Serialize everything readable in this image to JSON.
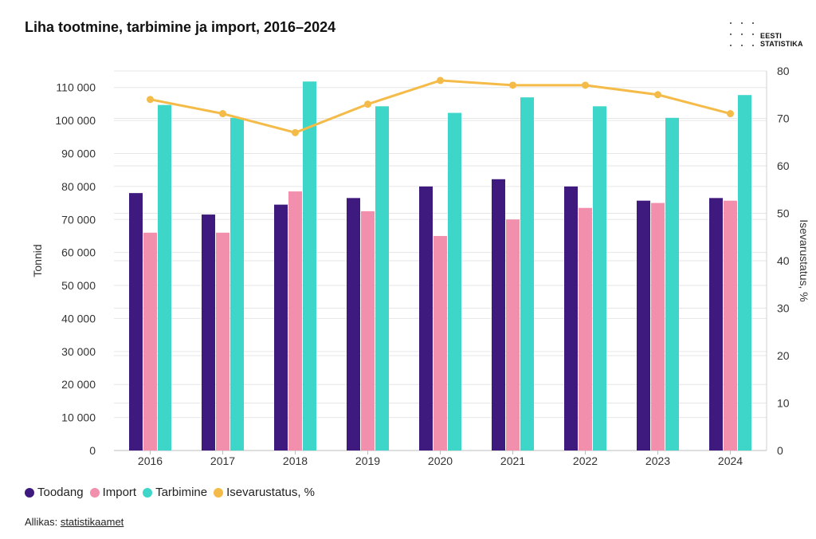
{
  "title": "Liha tootmine, tarbimine ja import, 2016–2024",
  "logo": {
    "line1": "EESTI",
    "line2": "STATISTIKA"
  },
  "source": {
    "label": "Allikas:",
    "link_text": "statistikaamet"
  },
  "colors": {
    "Toodang": "#3f1a7e",
    "Import": "#f28fad",
    "Tarbimine": "#3ed6c8",
    "Isevarustatus": "#f5bb48",
    "grid": "#e6e6e6"
  },
  "legend": [
    {
      "label": "Toodang",
      "color_key": "Toodang"
    },
    {
      "label": "Import",
      "color_key": "Import"
    },
    {
      "label": "Tarbimine",
      "color_key": "Tarbimine"
    },
    {
      "label": "Isevarustatus, %",
      "color_key": "Isevarustatus"
    }
  ],
  "chart_data": {
    "type": "bar",
    "categories": [
      "2016",
      "2017",
      "2018",
      "2019",
      "2020",
      "2021",
      "2022",
      "2023",
      "2024"
    ],
    "series": [
      {
        "name": "Toodang",
        "type": "bar",
        "axis": "left",
        "values": [
          78000,
          71500,
          74500,
          76500,
          80000,
          82200,
          80000,
          75700,
          76500
        ]
      },
      {
        "name": "Import",
        "type": "bar",
        "axis": "left",
        "values": [
          66000,
          66000,
          78500,
          72500,
          65000,
          70000,
          73500,
          75000,
          75700
        ]
      },
      {
        "name": "Tarbimine",
        "type": "bar",
        "axis": "left",
        "values": [
          104700,
          100800,
          111800,
          104300,
          102300,
          107000,
          104300,
          100800,
          107700
        ]
      },
      {
        "name": "Isevarustatus, %",
        "type": "line",
        "axis": "right",
        "values": [
          74,
          71,
          67,
          73,
          78,
          77,
          77,
          75,
          71
        ]
      }
    ],
    "ylabel": "Tonnid",
    "ylabel_right": "Isevarustatus, %",
    "ylim": [
      0,
      115000
    ],
    "ylim_right": [
      0,
      80
    ],
    "yticks": [
      0,
      10000,
      20000,
      30000,
      40000,
      50000,
      60000,
      70000,
      80000,
      90000,
      100000,
      110000
    ],
    "yticks_labels": [
      "0",
      "10 000",
      "20 000",
      "30 000",
      "40 000",
      "50 000",
      "60 000",
      "70 000",
      "80 000",
      "90 000",
      "100 000",
      "110 000"
    ],
    "yticks_right": [
      0,
      10,
      20,
      30,
      40,
      50,
      60,
      70,
      80
    ],
    "grid": true,
    "legend_position": "bottom-left"
  }
}
